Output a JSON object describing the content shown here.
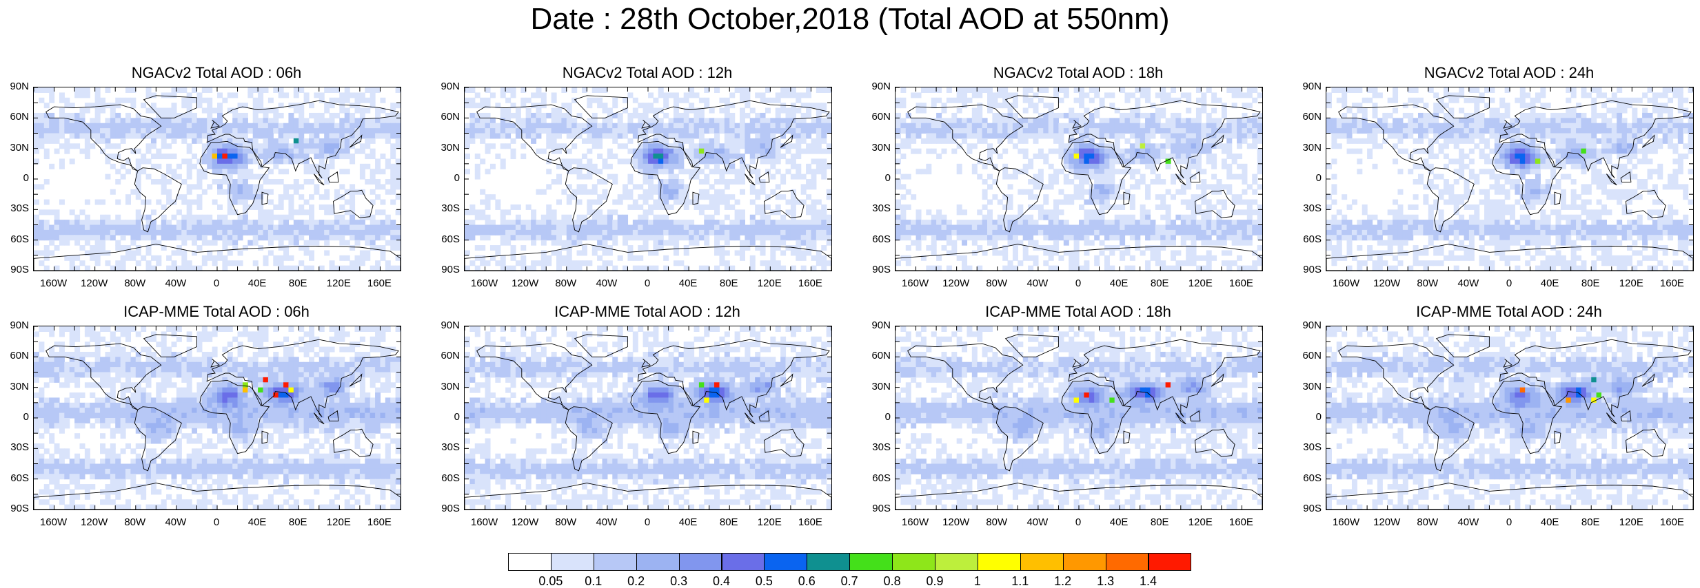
{
  "title": "Date : 28th October,2018 (Total AOD at 550nm)",
  "lat_labels": [
    "90N",
    "60N",
    "30N",
    "0",
    "30S",
    "60S",
    "90S"
  ],
  "lon_labels": [
    "160W",
    "120W",
    "80W",
    "40W",
    "0",
    "40E",
    "80E",
    "120E",
    "160E"
  ],
  "panels": [
    {
      "title": "NGACv2 Total AOD : 06h",
      "model": "NGACv2",
      "hour": "06h"
    },
    {
      "title": "NGACv2 Total AOD : 12h",
      "model": "NGACv2",
      "hour": "12h"
    },
    {
      "title": "NGACv2 Total AOD : 18h",
      "model": "NGACv2",
      "hour": "18h"
    },
    {
      "title": "NGACv2 Total AOD : 24h",
      "model": "NGACv2",
      "hour": "24h"
    },
    {
      "title": "ICAP-MME Total AOD : 06h",
      "model": "ICAP-MME",
      "hour": "06h"
    },
    {
      "title": "ICAP-MME Total AOD : 12h",
      "model": "ICAP-MME",
      "hour": "12h"
    },
    {
      "title": "ICAP-MME Total AOD : 18h",
      "model": "ICAP-MME",
      "hour": "18h"
    },
    {
      "title": "ICAP-MME Total AOD : 24h",
      "model": "ICAP-MME",
      "hour": "24h"
    }
  ],
  "colorbar": {
    "labels": [
      "0.05",
      "0.1",
      "0.2",
      "0.3",
      "0.4",
      "0.5",
      "0.6",
      "0.7",
      "0.8",
      "0.9",
      "1",
      "1.1",
      "1.2",
      "1.3",
      "1.4"
    ],
    "colors": [
      "#ffffff",
      "#d9e3fb",
      "#b7c8f6",
      "#9cb3f2",
      "#8196ee",
      "#6a6ee8",
      "#0a64f0",
      "#0f9090",
      "#44e01a",
      "#8ee61a",
      "#bdef3c",
      "#ffff00",
      "#ffbf00",
      "#ff9800",
      "#ff6a00",
      "#ff1a00"
    ]
  }
}
